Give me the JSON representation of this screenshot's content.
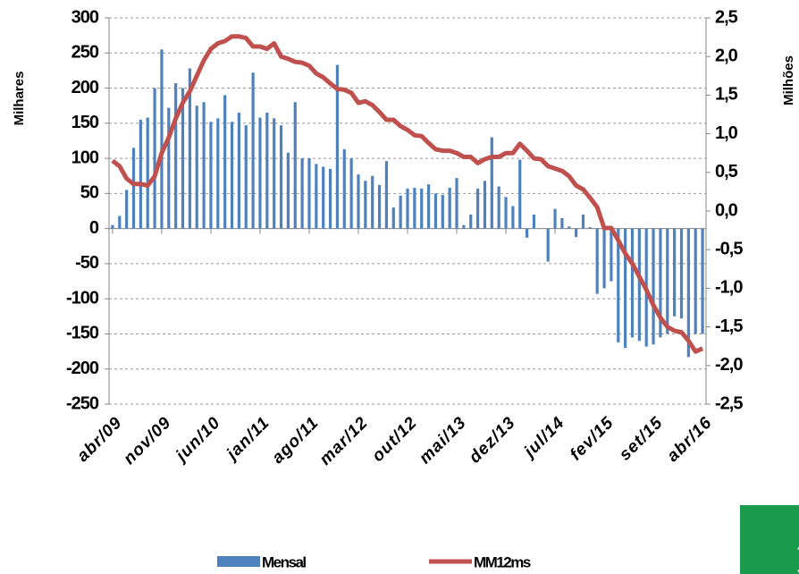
{
  "chart_data": {
    "type": "bar_line",
    "ylabel": "Milhares",
    "y2label": "Milhões",
    "categories": [
      "abr/09",
      null,
      null,
      null,
      null,
      null,
      null,
      "nov/09",
      null,
      null,
      null,
      null,
      null,
      null,
      "jun/10",
      null,
      null,
      null,
      null,
      null,
      null,
      "jan/11",
      null,
      null,
      null,
      null,
      null,
      null,
      "ago/11",
      null,
      null,
      null,
      null,
      null,
      null,
      "mar/12",
      null,
      null,
      null,
      null,
      null,
      null,
      "out/12",
      null,
      null,
      null,
      null,
      null,
      null,
      "mai/13",
      null,
      null,
      null,
      null,
      null,
      null,
      "dez/13",
      null,
      null,
      null,
      null,
      null,
      null,
      "jul/14",
      null,
      null,
      null,
      null,
      null,
      null,
      "fev/15",
      null,
      null,
      null,
      null,
      null,
      null,
      "set/15",
      null,
      null,
      null,
      null,
      null,
      null,
      "abr/16"
    ],
    "series": [
      {
        "name": "Mensal",
        "color": "#4f81bd",
        "kind": "bar",
        "values": [
          5,
          18,
          55,
          115,
          155,
          158,
          200,
          255,
          172,
          207,
          200,
          228,
          175,
          180,
          152,
          157,
          190,
          152,
          165,
          147,
          222,
          158,
          165,
          157,
          147,
          108,
          180,
          100,
          100,
          92,
          88,
          85,
          233,
          113,
          100,
          77,
          68,
          75,
          62,
          96,
          30,
          47,
          57,
          58,
          57,
          63,
          50,
          48,
          58,
          72,
          5,
          20,
          57,
          68,
          130,
          60,
          45,
          32,
          98,
          -13,
          20,
          0,
          -47,
          28,
          15,
          3,
          -12,
          20,
          2,
          -93,
          -85,
          -75,
          -162,
          -170,
          -155,
          -160,
          -168,
          -165,
          -155,
          -150,
          -125,
          -128,
          -183,
          -150,
          -150
        ]
      },
      {
        "name": "MM12ms",
        "color": "#c0504d",
        "kind": "line",
        "axis": "y2",
        "values": [
          0.65,
          0.58,
          0.42,
          0.35,
          0.35,
          0.33,
          0.45,
          0.75,
          0.95,
          1.2,
          1.4,
          1.55,
          1.75,
          1.95,
          2.1,
          2.17,
          2.2,
          2.26,
          2.26,
          2.24,
          2.13,
          2.13,
          2.1,
          2.17,
          2.0,
          1.97,
          1.93,
          1.92,
          1.88,
          1.78,
          1.73,
          1.65,
          1.58,
          1.57,
          1.53,
          1.4,
          1.42,
          1.37,
          1.28,
          1.18,
          1.18,
          1.1,
          1.05,
          0.98,
          0.97,
          0.88,
          0.8,
          0.78,
          0.78,
          0.75,
          0.7,
          0.7,
          0.62,
          0.67,
          0.7,
          0.7,
          0.75,
          0.75,
          0.87,
          0.78,
          0.68,
          0.67,
          0.58,
          0.55,
          0.52,
          0.45,
          0.33,
          0.28,
          0.17,
          0.05,
          -0.22,
          -0.22,
          -0.38,
          -0.55,
          -0.68,
          -0.85,
          -1.02,
          -1.22,
          -1.38,
          -1.5,
          -1.55,
          -1.57,
          -1.68,
          -1.82,
          -1.78
        ]
      }
    ],
    "ylim": [
      -250,
      300
    ],
    "yticks": [
      300,
      250,
      200,
      150,
      100,
      50,
      0,
      -50,
      -100,
      -150,
      -200,
      -250
    ],
    "y2lim": [
      -2.5,
      2.5
    ],
    "y2ticks": [
      {
        "value": 2.5,
        "label": "2,5"
      },
      {
        "value": 2.0,
        "label": "2,0"
      },
      {
        "value": 1.5,
        "label": "1,5"
      },
      {
        "value": 1.0,
        "label": "1,0"
      },
      {
        "value": 0.5,
        "label": "0,5"
      },
      {
        "value": 0.0,
        "label": "0,0"
      },
      {
        "value": -0.5,
        "label": "-0,5"
      },
      {
        "value": -1.0,
        "label": "-1,0"
      },
      {
        "value": -1.5,
        "label": "-1,5"
      },
      {
        "value": -2.0,
        "label": "-2,0"
      },
      {
        "value": -2.5,
        "label": "-2,5"
      }
    ],
    "grid": true
  }
}
